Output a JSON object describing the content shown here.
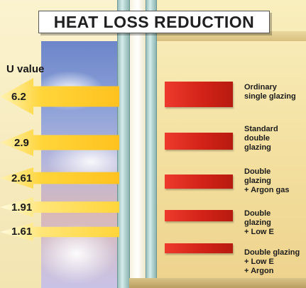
{
  "title": "HEAT LOSS REDUCTION",
  "u_value_heading": "U value",
  "rows": [
    {
      "u_value": "6.2",
      "label_lines": [
        "Ordinary",
        "single glazing"
      ]
    },
    {
      "u_value": "2.9",
      "label_lines": [
        "Standard",
        "double",
        "glazing"
      ]
    },
    {
      "u_value": "2.61",
      "label_lines": [
        "Double",
        "glazing",
        "+ Argon gas"
      ]
    },
    {
      "u_value": "1.91",
      "label_lines": [
        "Double",
        "glazing",
        "+ Low E"
      ]
    },
    {
      "u_value": "1.61",
      "label_lines": [
        "Double glazing",
        "+ Low E",
        "+ Argon"
      ]
    }
  ],
  "colors": {
    "arrow": "#ffd53a",
    "heat_bar": "#d9281c",
    "glass": "#b9d8d5"
  }
}
